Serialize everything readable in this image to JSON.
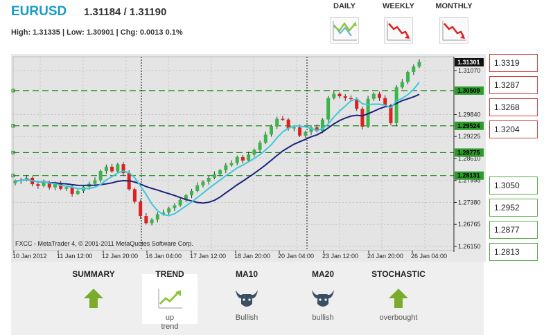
{
  "header": {
    "symbol": "EURUSD",
    "quote": "1.31184 / 1.31190",
    "stats": "High: 1.31335 | Low: 1.30901 | Chg: 0.0013 0.1%"
  },
  "timeframes": [
    {
      "label": "DAILY",
      "icon": "trend-up-icon"
    },
    {
      "label": "WEEKLY",
      "icon": "trend-down-icon"
    },
    {
      "label": "MONTHLY",
      "icon": "trend-down-icon"
    }
  ],
  "chart": {
    "credit": "FXCC - MetaTrader 4, © 2001-2011 MetaQuotes Software Corp.",
    "price_ticks": [
      "1.31070",
      "1.29840",
      "1.29225",
      "1.28610",
      "1.27995",
      "1.27380",
      "1.26765",
      "1.26150"
    ],
    "tags": [
      {
        "text": "1.31301",
        "price": 1.31301,
        "style": "current"
      },
      {
        "text": "1.30509",
        "price": 1.30509,
        "style": "level"
      },
      {
        "text": "1.29524",
        "price": 1.29524,
        "style": "level"
      },
      {
        "text": "1.28775",
        "price": 1.28775,
        "style": "level"
      },
      {
        "text": "1.28131",
        "price": 1.28131,
        "style": "level"
      }
    ],
    "time_labels": [
      "10 Jan 2012",
      "11 Jan 12:00",
      "12 Jan 20:00",
      "16 Jan 04:00",
      "17 Jan 12:00",
      "18 Jan 20:00",
      "20 Jan 04:00",
      "23 Jan 12:00",
      "24 Jan 20:00",
      "26 Jan 04:00"
    ],
    "colors": {
      "bull": "#3bb54a",
      "bear": "#e02020",
      "ma_fast": "#3cc8dc",
      "ma_slow": "#1a237e",
      "level": "#1a8a1a"
    }
  },
  "levels": {
    "resistance": [
      "1.3319",
      "1.3287",
      "1.3268",
      "1.3204"
    ],
    "support": [
      "1.3050",
      "1.2952",
      "1.2877",
      "1.2813"
    ]
  },
  "indicators": [
    {
      "title": "SUMMARY",
      "icon": "arrow-up-icon",
      "value": ""
    },
    {
      "title": "TREND",
      "icon": "trend-up-icon",
      "value": "up trend"
    },
    {
      "title": "MA10",
      "icon": "bull-icon",
      "value": "Bullish"
    },
    {
      "title": "MA20",
      "icon": "bull-icon",
      "value": "bullish"
    },
    {
      "title": "STOCHASTIC",
      "icon": "arrow-up-icon",
      "value": "overbought"
    }
  ]
}
